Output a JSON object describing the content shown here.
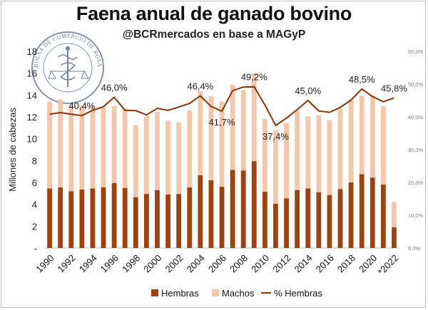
{
  "header": {
    "title": "Faena anual de ganado bovino",
    "subtitle": "@BCRmercados en base a MAGyP"
  },
  "logo": {
    "text": "BOLSA DE COMERCIO DE ROSARIO",
    "icon": "caduceus-seal-icon"
  },
  "colors": {
    "hembras": "#a0420f",
    "machos": "#f6c6a8",
    "line": "#8b3409",
    "axis_text": "#7f7f7f"
  },
  "chart_data": {
    "type": "bar",
    "stacked": true,
    "title": "Faena anual de ganado bovino",
    "ylabel": "Millones de cabezas",
    "ylim": [
      0,
      18
    ],
    "yticks": [
      "-",
      "2",
      "4",
      "6",
      "8",
      "10",
      "12",
      "14",
      "16",
      "18"
    ],
    "y2lim": [
      0,
      60
    ],
    "y2ticks": [
      "0,0%",
      "10,0%",
      "20,0%",
      "30,0%",
      "40,0%",
      "50,0%",
      "60,0%"
    ],
    "categories": [
      "1990",
      "1991",
      "1992",
      "1993",
      "1994",
      "1995",
      "1996",
      "1997",
      "1998",
      "1999",
      "2000",
      "2001",
      "2002",
      "2003",
      "2004",
      "2005",
      "2006",
      "2007",
      "2008",
      "2009",
      "2010",
      "2011",
      "2012",
      "2013",
      "2014",
      "2015",
      "2016",
      "2017",
      "2018",
      "2019",
      "2020",
      "2021",
      "*2022"
    ],
    "xtick_labels": [
      "1990",
      "",
      "1992",
      "",
      "1994",
      "",
      "1996",
      "",
      "1998",
      "",
      "2000",
      "",
      "2002",
      "",
      "2004",
      "",
      "2006",
      "",
      "2008",
      "",
      "2010",
      "",
      "2012",
      "",
      "2014",
      "",
      "2016",
      "",
      "2018",
      "",
      "2020",
      "",
      "*2022"
    ],
    "series": [
      {
        "name": "Hembras",
        "values": [
          5.45,
          5.55,
          5.2,
          5.35,
          5.45,
          5.55,
          5.95,
          5.5,
          4.65,
          4.95,
          5.3,
          4.9,
          4.95,
          5.55,
          6.65,
          6.2,
          5.6,
          7.15,
          7.1,
          7.95,
          5.15,
          4.05,
          4.55,
          5.3,
          5.45,
          5.1,
          4.85,
          5.4,
          6.0,
          6.75,
          6.45,
          5.8,
          1.9
        ]
      },
      {
        "name": "Machos",
        "values": [
          7.95,
          8.05,
          7.8,
          7.65,
          7.55,
          7.35,
          7.05,
          7.3,
          6.6,
          7.1,
          7.15,
          6.75,
          6.55,
          7.05,
          7.7,
          7.7,
          7.8,
          7.8,
          7.35,
          8.05,
          6.65,
          6.75,
          6.9,
          7.3,
          6.6,
          7.05,
          6.85,
          7.3,
          7.55,
          7.15,
          7.5,
          7.2,
          2.3
        ]
      },
      {
        "name": "% Hembras",
        "axis": "right",
        "values": [
          40.8,
          41.3,
          40.8,
          40.4,
          42.0,
          43.1,
          46.0,
          42.0,
          41.9,
          40.6,
          42.6,
          42.0,
          43.0,
          44.1,
          46.4,
          43.2,
          41.7,
          48.0,
          49.1,
          49.2,
          43.6,
          37.4,
          39.6,
          42.2,
          45.0,
          41.8,
          41.4,
          42.9,
          45.1,
          48.5,
          46.2,
          44.6,
          45.8
        ]
      }
    ],
    "data_labels": [
      {
        "index": 3,
        "text": "40,4%"
      },
      {
        "index": 6,
        "text": "46,0%"
      },
      {
        "index": 14,
        "text": "46,4%"
      },
      {
        "index": 16,
        "text": "41,7%"
      },
      {
        "index": 19,
        "text": "49,2%"
      },
      {
        "index": 21,
        "text": "37,4%"
      },
      {
        "index": 24,
        "text": "45,0%"
      },
      {
        "index": 29,
        "text": "48,5%"
      },
      {
        "index": 32,
        "text": "45,8%"
      }
    ],
    "legend": {
      "position": "bottom",
      "items": [
        "Hembras",
        "Machos",
        "% Hembras"
      ]
    },
    "grid": false
  }
}
